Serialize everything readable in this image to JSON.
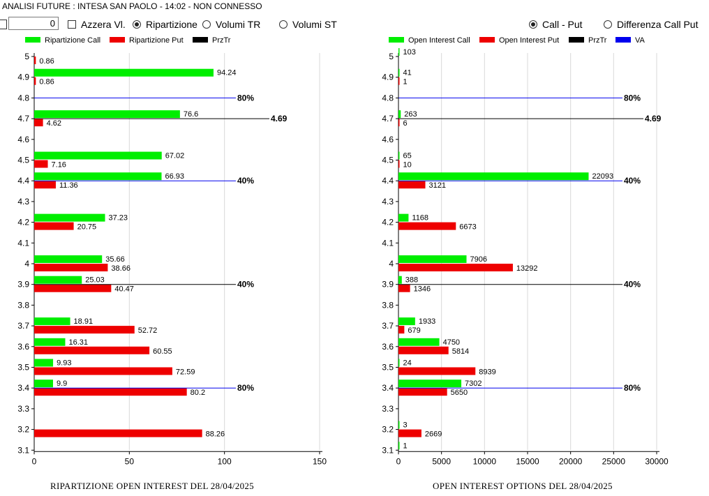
{
  "window": {
    "title": "ANALISI FUTURE : INTESA SAN PAOLO - 14:02 - NON CONNESSO"
  },
  "toolbar": {
    "number_value": "0",
    "azzera_label": "Azzera Vl.",
    "radio_ripartizione": "Ripartizione",
    "radio_volumi_tr": "Volumi TR",
    "radio_volumi_st": "Volumi ST",
    "radio_call_put": "Call - Put",
    "radio_diff": "Differenza Call Put",
    "selected_left": "Ripartizione",
    "selected_right": "Call - Put"
  },
  "colors": {
    "call": "#00ee00",
    "put": "#ee0000",
    "przTr": "#000000",
    "va": "#0000ee"
  },
  "chart_data": [
    {
      "type": "bar",
      "orientation": "horizontal",
      "caption": "RIPARTIZIONE OPEN INTEREST DEL 28/04/2025",
      "legend": [
        "Ripartizione Call",
        "Ripartizione Put",
        "PrzTr"
      ],
      "y_ticks": [
        "5",
        "4.9",
        "4.8",
        "4.7",
        "4.6",
        "4.5",
        "4.4",
        "4.3",
        "4.2",
        "4.1",
        "4",
        "3.9",
        "3.8",
        "3.7",
        "3.6",
        "3.5",
        "3.4",
        "3.3",
        "3.2",
        "3.1"
      ],
      "x_ticks": [
        "0",
        "50",
        "100",
        "150"
      ],
      "xlim": [
        0,
        150
      ],
      "rows": [
        {
          "y": 5,
          "call": null,
          "call_label": "",
          "put": 0.86,
          "put_label": "0.86"
        },
        {
          "y": 4.9,
          "call": 94.24,
          "call_label": "94.24",
          "put": 0.86,
          "put_label": "0.86"
        },
        {
          "y": 4.7,
          "call": 76.6,
          "call_label": "76.6",
          "put": 4.62,
          "put_label": "4.62"
        },
        {
          "y": 4.5,
          "call": 67.02,
          "call_label": "67.02",
          "put": 7.16,
          "put_label": "7.16"
        },
        {
          "y": 4.4,
          "call": 66.93,
          "call_label": "66.93",
          "put": 11.36,
          "put_label": "11.36"
        },
        {
          "y": 4.2,
          "call": 37.23,
          "call_label": "37.23",
          "put": 20.75,
          "put_label": "20.75"
        },
        {
          "y": 4,
          "call": 35.66,
          "call_label": "35.66",
          "put": 38.66,
          "put_label": "38.66"
        },
        {
          "y": 3.9,
          "call": 25.03,
          "call_label": "25.03",
          "put": 40.47,
          "put_label": "40.47"
        },
        {
          "y": 3.7,
          "call": 18.91,
          "call_label": "18.91",
          "put": 52.72,
          "put_label": "52.72"
        },
        {
          "y": 3.6,
          "call": 16.31,
          "call_label": "16.31",
          "put": 60.55,
          "put_label": "60.55"
        },
        {
          "y": 3.5,
          "call": 9.93,
          "call_label": "9.93",
          "put": 72.59,
          "put_label": "72.59"
        },
        {
          "y": 3.4,
          "call": 9.9,
          "call_label": "9.9",
          "put": 80.2,
          "put_label": "80.2"
        },
        {
          "y": 3.2,
          "call": null,
          "call_label": "",
          "put": 88.26,
          "put_label": "88.26"
        }
      ],
      "lines": [
        {
          "y": 4.8,
          "label": "80%",
          "color": "#0000ee"
        },
        {
          "y": 4.7,
          "label": "4.69",
          "color": "#000000"
        },
        {
          "y": 4.4,
          "label": "40%",
          "color": "#0000ee"
        },
        {
          "y": 3.9,
          "label": "40%",
          "color": "#000000"
        },
        {
          "y": 3.4,
          "label": "80%",
          "color": "#0000ee"
        }
      ]
    },
    {
      "type": "bar",
      "orientation": "horizontal",
      "caption": "OPEN INTEREST OPTIONS DEL 28/04/2025",
      "legend": [
        "Open Interest Call",
        "Open Interest Put",
        "PrzTr",
        "VA"
      ],
      "y_ticks": [
        "5",
        "4.9",
        "4.8",
        "4.7",
        "4.6",
        "4.5",
        "4.4",
        "4.3",
        "4.2",
        "4.1",
        "4",
        "3.9",
        "3.8",
        "3.7",
        "3.6",
        "3.5",
        "3.4",
        "3.3",
        "3.2",
        "3.1"
      ],
      "x_ticks": [
        "0",
        "5000",
        "10000",
        "15000",
        "20000",
        "25000",
        "30000"
      ],
      "xlim": [
        0,
        30000
      ],
      "rows": [
        {
          "y": 5,
          "call": 103,
          "call_label": "103",
          "put": null,
          "put_label": ""
        },
        {
          "y": 4.9,
          "call": 41,
          "call_label": "41",
          "put": 1,
          "put_label": "1"
        },
        {
          "y": 4.7,
          "call": 263,
          "call_label": "263",
          "put": 6,
          "put_label": "6"
        },
        {
          "y": 4.5,
          "call": 65,
          "call_label": "65",
          "put": 10,
          "put_label": "10"
        },
        {
          "y": 4.4,
          "call": 22093,
          "call_label": "22093",
          "put": 3121,
          "put_label": "3121"
        },
        {
          "y": 4.2,
          "call": 1168,
          "call_label": "1168",
          "put": 6673,
          "put_label": "6673"
        },
        {
          "y": 4,
          "call": 7906,
          "call_label": "7906",
          "put": 13292,
          "put_label": "13292"
        },
        {
          "y": 3.9,
          "call": 388,
          "call_label": "388",
          "put": 1346,
          "put_label": "1346"
        },
        {
          "y": 3.7,
          "call": 1933,
          "call_label": "1933",
          "put": 679,
          "put_label": "679"
        },
        {
          "y": 3.6,
          "call": 4750,
          "call_label": "4750",
          "put": 5814,
          "put_label": "5814"
        },
        {
          "y": 3.5,
          "call": 24,
          "call_label": "24",
          "put": 8939,
          "put_label": "8939"
        },
        {
          "y": 3.4,
          "call": 7302,
          "call_label": "7302",
          "put": 5650,
          "put_label": "5650"
        },
        {
          "y": 3.2,
          "call": 3,
          "call_label": "3",
          "put": 2669,
          "put_label": "2669"
        },
        {
          "y": 3.1,
          "call": 1,
          "call_label": "1",
          "put": null,
          "put_label": ""
        }
      ],
      "lines": [
        {
          "y": 4.8,
          "label": "80%",
          "color": "#0000ee"
        },
        {
          "y": 4.7,
          "label": "4.69",
          "color": "#000000"
        },
        {
          "y": 4.4,
          "label": "40%",
          "color": "#0000ee"
        },
        {
          "y": 3.9,
          "label": "40%",
          "color": "#000000"
        },
        {
          "y": 3.4,
          "label": "80%",
          "color": "#0000ee"
        }
      ]
    }
  ]
}
